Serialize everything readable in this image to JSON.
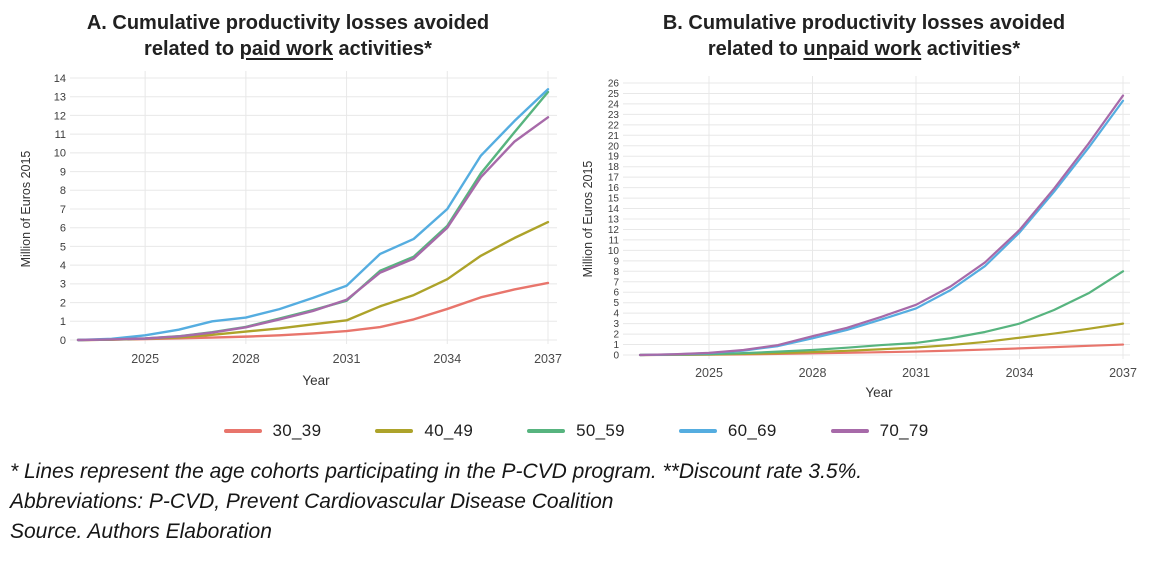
{
  "panels": [
    {
      "title_line1": "A. Cumulative productivity losses avoided",
      "title_line2_prefix": "related to ",
      "title_underlined": "paid work",
      "title_line2_suffix": " activities*"
    },
    {
      "title_line1": "B. Cumulative productivity losses avoided",
      "title_line2_prefix": "related to ",
      "title_underlined": "unpaid work",
      "title_line2_suffix": " activities*"
    }
  ],
  "chart_data": [
    {
      "type": "line",
      "title": "A. Cumulative productivity losses avoided related to paid work activities*",
      "xlabel": "Year",
      "ylabel": "Million of Euros 2015",
      "x": [
        2023,
        2024,
        2025,
        2026,
        2027,
        2028,
        2029,
        2030,
        2031,
        2032,
        2033,
        2034,
        2035,
        2036,
        2037
      ],
      "xticks": [
        2025,
        2028,
        2031,
        2034,
        2037
      ],
      "ylim": [
        0,
        14
      ],
      "ytick_step": 1,
      "grid": true,
      "series": [
        {
          "name": "30_39",
          "color": "#E8756C",
          "values": [
            0,
            0.02,
            0.05,
            0.09,
            0.13,
            0.18,
            0.25,
            0.35,
            0.48,
            0.69,
            1.1,
            1.66,
            2.28,
            2.7,
            3.05
          ]
        },
        {
          "name": "40_49",
          "color": "#ADA32A",
          "values": [
            0,
            0.02,
            0.07,
            0.14,
            0.28,
            0.45,
            0.62,
            0.84,
            1.05,
            1.8,
            2.4,
            3.25,
            4.5,
            5.45,
            6.3
          ]
        },
        {
          "name": "50_59",
          "color": "#57B47F",
          "values": [
            0,
            0.03,
            0.08,
            0.2,
            0.42,
            0.7,
            1.15,
            1.6,
            2.1,
            3.7,
            4.45,
            6.1,
            8.9,
            11.1,
            13.25
          ]
        },
        {
          "name": "60_69",
          "color": "#55ADE0",
          "values": [
            0,
            0.06,
            0.25,
            0.55,
            1.0,
            1.2,
            1.65,
            2.25,
            2.9,
            4.6,
            5.4,
            7.0,
            9.85,
            11.7,
            13.4
          ]
        },
        {
          "name": "70_79",
          "color": "#A76AA9",
          "values": [
            0,
            0.03,
            0.08,
            0.19,
            0.4,
            0.68,
            1.1,
            1.55,
            2.15,
            3.6,
            4.35,
            6.0,
            8.7,
            10.6,
            11.9
          ]
        }
      ]
    },
    {
      "type": "line",
      "title": "B. Cumulative productivity losses avoided related to unpaid work activities*",
      "xlabel": "Year",
      "ylabel": "Million of Euros 2015",
      "x": [
        2023,
        2024,
        2025,
        2026,
        2027,
        2028,
        2029,
        2030,
        2031,
        2032,
        2033,
        2034,
        2035,
        2036,
        2037
      ],
      "xticks": [
        2025,
        2028,
        2031,
        2034,
        2037
      ],
      "ylim": [
        0,
        26
      ],
      "ytick_step": 1,
      "grid": true,
      "series": [
        {
          "name": "30_39",
          "color": "#E8756C",
          "values": [
            0,
            0.01,
            0.03,
            0.06,
            0.1,
            0.16,
            0.21,
            0.27,
            0.33,
            0.42,
            0.52,
            0.63,
            0.75,
            0.88,
            1.0
          ]
        },
        {
          "name": "40_49",
          "color": "#ADA32A",
          "values": [
            0,
            0.02,
            0.05,
            0.1,
            0.18,
            0.28,
            0.4,
            0.55,
            0.72,
            0.95,
            1.25,
            1.65,
            2.05,
            2.5,
            3.0
          ]
        },
        {
          "name": "50_59",
          "color": "#57B47F",
          "values": [
            0,
            0.03,
            0.08,
            0.18,
            0.32,
            0.48,
            0.7,
            0.95,
            1.15,
            1.6,
            2.2,
            3.0,
            4.3,
            5.9,
            8.0
          ]
        },
        {
          "name": "60_69",
          "color": "#55ADE0",
          "values": [
            0,
            0.06,
            0.18,
            0.42,
            0.85,
            1.6,
            2.4,
            3.4,
            4.45,
            6.2,
            8.5,
            11.7,
            15.6,
            19.8,
            24.3
          ]
        },
        {
          "name": "70_79",
          "color": "#A76AA9",
          "values": [
            0,
            0.07,
            0.2,
            0.48,
            0.95,
            1.8,
            2.6,
            3.65,
            4.8,
            6.55,
            8.85,
            11.95,
            15.9,
            20.2,
            24.8
          ]
        }
      ]
    }
  ],
  "legend": {
    "items": [
      {
        "label": "30_39",
        "color": "#E8756C"
      },
      {
        "label": "40_49",
        "color": "#ADA32A"
      },
      {
        "label": "50_59",
        "color": "#57B47F"
      },
      {
        "label": "60_69",
        "color": "#55ADE0"
      },
      {
        "label": "70_79",
        "color": "#A76AA9"
      }
    ]
  },
  "footnotes": {
    "line1": "* Lines represent the age cohorts participating in the P-CVD program. **Discount rate 3.5%.",
    "line2": "Abbreviations: P-CVD, Prevent Cardiovascular Disease Coalition",
    "line3": "Source. Authors Elaboration"
  },
  "colors": {
    "grid": "#E8E8E8",
    "tick_text": "#3C3C3C",
    "axis_label_text": "#4A4A4A",
    "axis_title_text": "#333333",
    "title_text": "#212121"
  }
}
